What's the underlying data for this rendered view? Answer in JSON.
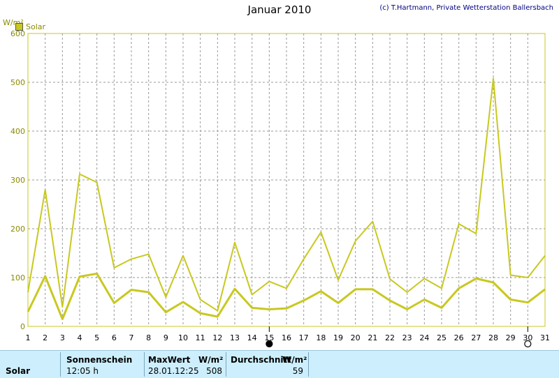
{
  "header": {
    "title": "Januar 2010",
    "credit": "(c) T.Hartmann, Private Wetterstation Ballersbach",
    "unit": "W/m²"
  },
  "legend": {
    "label": "Solar",
    "color": "#c8c820"
  },
  "chart_data": {
    "type": "line",
    "x": [
      1,
      2,
      3,
      4,
      5,
      6,
      7,
      8,
      9,
      10,
      11,
      12,
      13,
      14,
      15,
      16,
      17,
      18,
      19,
      20,
      21,
      22,
      23,
      24,
      25,
      26,
      27,
      28,
      29,
      30,
      31
    ],
    "series": [
      {
        "name": "Solar",
        "values": [
          70,
          280,
          40,
          312,
          295,
          120,
          138,
          148,
          60,
          145,
          55,
          32,
          172,
          65,
          92,
          78,
          138,
          193,
          95,
          175,
          215,
          97,
          70,
          98,
          78,
          210,
          190,
          508,
          105,
          100,
          145
        ]
      },
      {
        "values": [
          30,
          103,
          15,
          102,
          108,
          48,
          75,
          70,
          29,
          50,
          27,
          20,
          77,
          38,
          35,
          37,
          53,
          72,
          48,
          76,
          76,
          53,
          35,
          55,
          38,
          78,
          98,
          90,
          55,
          49,
          76
        ]
      }
    ],
    "xlim": [
      1,
      31
    ],
    "ylim": [
      0,
      600
    ],
    "yticks": [
      0,
      100,
      200,
      300,
      400,
      500,
      600
    ],
    "grid": true,
    "line_color": "#c8c820",
    "moon_markers": [
      {
        "day": 15,
        "symbol": "new moon"
      },
      {
        "day": 30,
        "symbol": "full moon"
      }
    ]
  },
  "panel": {
    "row_label": "Solar",
    "sunshine_header": "Sonnenschein",
    "sunshine_value": "12:05 h",
    "max_header": "MaxWert",
    "max_unit": "W/m²",
    "max_date": "28.01.",
    "max_time": "12:25",
    "max_value": "508",
    "avg_header": "Durchschnitt",
    "avg_unit": "W/m²",
    "avg_value": "59"
  }
}
